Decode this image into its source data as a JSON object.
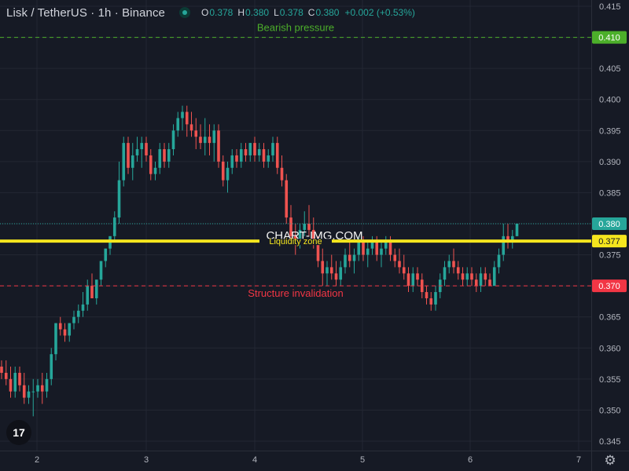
{
  "header": {
    "title": "Lisk / TetherUS · 1h · Binance",
    "ohlc": [
      {
        "k": "O",
        "v": "0.378"
      },
      {
        "k": "H",
        "v": "0.380"
      },
      {
        "k": "L",
        "v": "0.378"
      },
      {
        "k": "C",
        "v": "0.380"
      },
      {
        "k": "",
        "v": "+0.002 (+0.53%)"
      }
    ]
  },
  "watermark": "CHART-IMG.COM",
  "logo_text": "17",
  "colors": {
    "background": "#161a25",
    "grid": "#232733",
    "up": "#26a69a",
    "down": "#ef5350",
    "axis_text": "#b2b5be",
    "bearish_line": "#4caf2a",
    "liquidity_line": "#f5e61e",
    "invalidation_line": "#f23645"
  },
  "chart_data": {
    "type": "candlestick",
    "x_ticks": [
      "2",
      "3",
      "4",
      "5",
      "6",
      "7"
    ],
    "y_ticks": [
      "0.345",
      "0.350",
      "0.355",
      "0.360",
      "0.365",
      "0.370",
      "0.375",
      "0.380",
      "0.385",
      "0.390",
      "0.395",
      "0.400",
      "0.405",
      "0.410",
      "0.415"
    ],
    "ylim": [
      0.3435,
      0.4155
    ],
    "price_labels": [
      {
        "value": 0.41,
        "text": "0.410",
        "color": "#4caf2a"
      },
      {
        "value": 0.38,
        "text": "0.380",
        "color": "#26a69a"
      },
      {
        "value": 0.3772,
        "text": "0.377",
        "color": "#f5e61e"
      },
      {
        "value": 0.37,
        "text": "0.370",
        "color": "#f23645"
      }
    ],
    "levels": [
      {
        "value": 0.41,
        "label": "Bearish pressure",
        "style": "dashed",
        "color": "#4caf2a"
      },
      {
        "value": 0.3772,
        "label": "Liquidity zone",
        "style": "solid-thick",
        "color": "#f5e61e"
      },
      {
        "value": 0.37,
        "label": "Structure invalidation",
        "style": "dashed",
        "color": "#f23645"
      }
    ],
    "last_price": 0.38,
    "candles": [
      [
        0.357,
        0.358,
        0.355,
        0.356
      ],
      [
        0.356,
        0.358,
        0.354,
        0.355
      ],
      [
        0.355,
        0.357,
        0.352,
        0.353
      ],
      [
        0.353,
        0.357,
        0.352,
        0.356
      ],
      [
        0.356,
        0.357,
        0.353,
        0.354
      ],
      [
        0.354,
        0.356,
        0.351,
        0.352
      ],
      [
        0.352,
        0.354,
        0.351,
        0.353
      ],
      [
        0.353,
        0.355,
        0.349,
        0.353
      ],
      [
        0.353,
        0.355,
        0.352,
        0.354
      ],
      [
        0.354,
        0.356,
        0.351,
        0.353
      ],
      [
        0.353,
        0.356,
        0.352,
        0.355
      ],
      [
        0.355,
        0.36,
        0.354,
        0.359
      ],
      [
        0.359,
        0.364,
        0.358,
        0.364
      ],
      [
        0.364,
        0.365,
        0.362,
        0.363
      ],
      [
        0.363,
        0.364,
        0.361,
        0.362
      ],
      [
        0.362,
        0.364,
        0.361,
        0.364
      ],
      [
        0.364,
        0.366,
        0.363,
        0.365
      ],
      [
        0.365,
        0.367,
        0.364,
        0.366
      ],
      [
        0.366,
        0.369,
        0.365,
        0.367
      ],
      [
        0.367,
        0.371,
        0.366,
        0.37
      ],
      [
        0.37,
        0.372,
        0.368,
        0.368
      ],
      [
        0.368,
        0.371,
        0.367,
        0.371
      ],
      [
        0.371,
        0.374,
        0.37,
        0.374
      ],
      [
        0.374,
        0.376,
        0.373,
        0.376
      ],
      [
        0.376,
        0.378,
        0.375,
        0.378
      ],
      [
        0.378,
        0.382,
        0.377,
        0.381
      ],
      [
        0.381,
        0.39,
        0.38,
        0.387
      ],
      [
        0.387,
        0.394,
        0.386,
        0.393
      ],
      [
        0.393,
        0.394,
        0.388,
        0.389
      ],
      [
        0.389,
        0.393,
        0.387,
        0.391
      ],
      [
        0.391,
        0.394,
        0.39,
        0.392
      ],
      [
        0.392,
        0.394,
        0.389,
        0.393
      ],
      [
        0.393,
        0.394,
        0.39,
        0.391
      ],
      [
        0.391,
        0.392,
        0.387,
        0.388
      ],
      [
        0.388,
        0.39,
        0.387,
        0.389
      ],
      [
        0.389,
        0.393,
        0.388,
        0.392
      ],
      [
        0.392,
        0.393,
        0.389,
        0.39
      ],
      [
        0.39,
        0.393,
        0.389,
        0.392
      ],
      [
        0.392,
        0.396,
        0.391,
        0.395
      ],
      [
        0.395,
        0.398,
        0.394,
        0.397
      ],
      [
        0.397,
        0.399,
        0.395,
        0.398
      ],
      [
        0.398,
        0.399,
        0.394,
        0.396
      ],
      [
        0.396,
        0.398,
        0.394,
        0.395
      ],
      [
        0.395,
        0.397,
        0.392,
        0.394
      ],
      [
        0.394,
        0.396,
        0.392,
        0.393
      ],
      [
        0.393,
        0.397,
        0.391,
        0.394
      ],
      [
        0.394,
        0.396,
        0.391,
        0.393
      ],
      [
        0.393,
        0.396,
        0.39,
        0.395
      ],
      [
        0.395,
        0.396,
        0.389,
        0.39
      ],
      [
        0.39,
        0.391,
        0.386,
        0.387
      ],
      [
        0.387,
        0.39,
        0.385,
        0.389
      ],
      [
        0.389,
        0.392,
        0.388,
        0.391
      ],
      [
        0.391,
        0.392,
        0.389,
        0.39
      ],
      [
        0.39,
        0.393,
        0.389,
        0.392
      ],
      [
        0.392,
        0.393,
        0.39,
        0.391
      ],
      [
        0.391,
        0.393,
        0.39,
        0.393
      ],
      [
        0.393,
        0.394,
        0.39,
        0.391
      ],
      [
        0.391,
        0.393,
        0.39,
        0.392
      ],
      [
        0.392,
        0.393,
        0.389,
        0.39
      ],
      [
        0.39,
        0.392,
        0.389,
        0.391
      ],
      [
        0.391,
        0.394,
        0.39,
        0.393
      ],
      [
        0.393,
        0.394,
        0.388,
        0.389
      ],
      [
        0.389,
        0.391,
        0.386,
        0.387
      ],
      [
        0.387,
        0.388,
        0.38,
        0.381
      ],
      [
        0.381,
        0.383,
        0.377,
        0.378
      ],
      [
        0.378,
        0.38,
        0.375,
        0.377
      ],
      [
        0.377,
        0.38,
        0.376,
        0.379
      ],
      [
        0.379,
        0.382,
        0.378,
        0.38
      ],
      [
        0.38,
        0.383,
        0.378,
        0.379
      ],
      [
        0.379,
        0.381,
        0.376,
        0.377
      ],
      [
        0.377,
        0.378,
        0.373,
        0.374
      ],
      [
        0.374,
        0.376,
        0.37,
        0.372
      ],
      [
        0.372,
        0.374,
        0.37,
        0.373
      ],
      [
        0.373,
        0.375,
        0.371,
        0.372
      ],
      [
        0.372,
        0.374,
        0.37,
        0.371
      ],
      [
        0.371,
        0.374,
        0.37,
        0.373
      ],
      [
        0.373,
        0.376,
        0.372,
        0.375
      ],
      [
        0.375,
        0.377,
        0.373,
        0.374
      ],
      [
        0.374,
        0.376,
        0.372,
        0.375
      ],
      [
        0.375,
        0.378,
        0.374,
        0.377
      ],
      [
        0.377,
        0.378,
        0.374,
        0.375
      ],
      [
        0.375,
        0.377,
        0.373,
        0.376
      ],
      [
        0.376,
        0.378,
        0.375,
        0.377
      ],
      [
        0.377,
        0.378,
        0.374,
        0.375
      ],
      [
        0.375,
        0.377,
        0.373,
        0.376
      ],
      [
        0.376,
        0.378,
        0.375,
        0.377
      ],
      [
        0.377,
        0.378,
        0.374,
        0.375
      ],
      [
        0.375,
        0.376,
        0.373,
        0.374
      ],
      [
        0.374,
        0.376,
        0.372,
        0.373
      ],
      [
        0.373,
        0.375,
        0.371,
        0.372
      ],
      [
        0.372,
        0.373,
        0.369,
        0.37
      ],
      [
        0.37,
        0.373,
        0.369,
        0.372
      ],
      [
        0.372,
        0.373,
        0.37,
        0.371
      ],
      [
        0.371,
        0.372,
        0.368,
        0.369
      ],
      [
        0.369,
        0.37,
        0.367,
        0.368
      ],
      [
        0.368,
        0.369,
        0.366,
        0.367
      ],
      [
        0.367,
        0.37,
        0.366,
        0.369
      ],
      [
        0.369,
        0.372,
        0.368,
        0.371
      ],
      [
        0.371,
        0.374,
        0.37,
        0.373
      ],
      [
        0.373,
        0.375,
        0.372,
        0.374
      ],
      [
        0.374,
        0.376,
        0.372,
        0.373
      ],
      [
        0.373,
        0.374,
        0.371,
        0.372
      ],
      [
        0.372,
        0.373,
        0.37,
        0.371
      ],
      [
        0.371,
        0.373,
        0.37,
        0.372
      ],
      [
        0.372,
        0.373,
        0.37,
        0.371
      ],
      [
        0.371,
        0.372,
        0.369,
        0.37
      ],
      [
        0.37,
        0.373,
        0.369,
        0.372
      ],
      [
        0.372,
        0.373,
        0.37,
        0.371
      ],
      [
        0.371,
        0.372,
        0.37,
        0.37
      ],
      [
        0.37,
        0.374,
        0.37,
        0.373
      ],
      [
        0.373,
        0.376,
        0.372,
        0.375
      ],
      [
        0.375,
        0.38,
        0.374,
        0.378
      ],
      [
        0.378,
        0.38,
        0.376,
        0.377
      ],
      [
        0.377,
        0.379,
        0.376,
        0.378
      ],
      [
        0.378,
        0.38,
        0.378,
        0.38
      ]
    ]
  }
}
